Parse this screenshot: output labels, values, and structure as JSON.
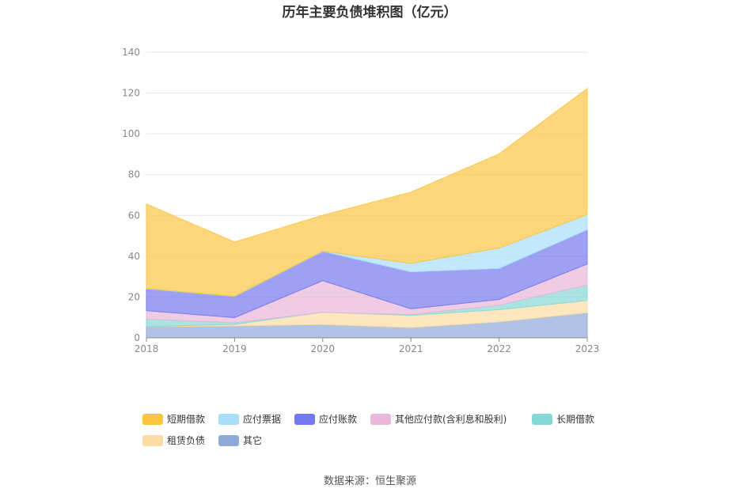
{
  "chart_data": {
    "type": "area",
    "stacked": true,
    "title": "历年主要负债堆积图（亿元）",
    "x": [
      "2018",
      "2019",
      "2020",
      "2021",
      "2022",
      "2023"
    ],
    "ylim": [
      0,
      140
    ],
    "yticks": [
      "0",
      "20",
      "40",
      "60",
      "80",
      "100",
      "120",
      "140"
    ],
    "grid": true,
    "legend_position": "bottom",
    "series": [
      {
        "name": "其它",
        "color": "#8eaad8",
        "values": [
          5.5,
          5.8,
          6.5,
          5.0,
          7.8,
          12.3
        ]
      },
      {
        "name": "租赁负债",
        "color": "#fddca3",
        "values": [
          0,
          0.8,
          6.0,
          6.0,
          6.0,
          6.0
        ]
      },
      {
        "name": "长期借款",
        "color": "#86d8d6",
        "values": [
          3.7,
          0.8,
          0,
          0.4,
          2.2,
          7.6
        ]
      },
      {
        "name": "其他应付款(含利息和股利)",
        "color": "#e8b7d9",
        "values": [
          4.1,
          2.5,
          15.5,
          2.8,
          2.8,
          10.3
        ]
      },
      {
        "name": "应付账款",
        "color": "#7478ee",
        "values": [
          10.7,
          10.3,
          14.3,
          18.1,
          15.2,
          16.7
        ]
      },
      {
        "name": "应付票据",
        "color": "#a9defa",
        "values": [
          0.2,
          0.2,
          0.2,
          4.2,
          10.0,
          7.5
        ]
      },
      {
        "name": "短期借款",
        "color": "#fbc541",
        "values": [
          41.4,
          26.6,
          17.6,
          34.9,
          46.2,
          61.8
        ]
      }
    ],
    "legend_order": [
      "短期借款",
      "应付票据",
      "应付账款",
      "其他应付款(含利息和股利)",
      "长期借款",
      "租赁负债",
      "其它"
    ]
  },
  "source": "数据来源：恒生聚源"
}
